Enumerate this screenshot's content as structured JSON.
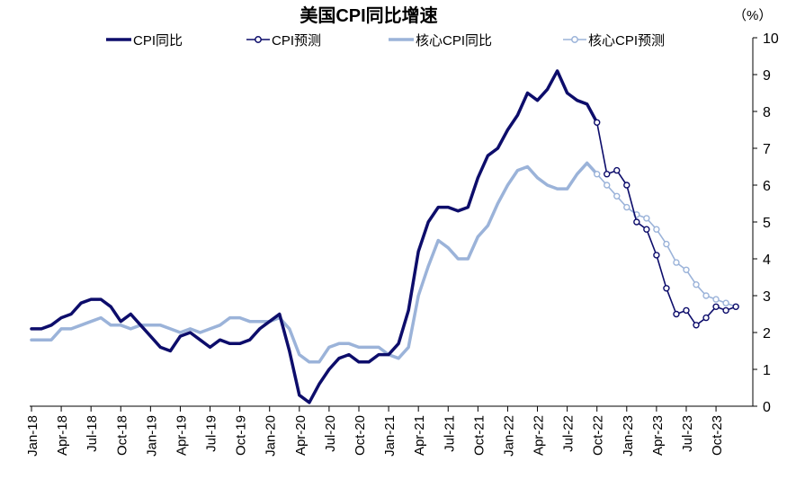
{
  "chart_data": {
    "type": "line",
    "title": "美国CPI同比增速",
    "unit": "（%）",
    "ylim": [
      0,
      10
    ],
    "yticks": [
      0,
      1,
      2,
      3,
      4,
      5,
      6,
      7,
      8,
      9,
      10
    ],
    "x_tick_labels": [
      "Jan-18",
      "Apr-18",
      "Jul-18",
      "Oct-18",
      "Jan-19",
      "Apr-19",
      "Jul-19",
      "Oct-19",
      "Jan-20",
      "Apr-20",
      "Jul-20",
      "Oct-20",
      "Jan-21",
      "Apr-21",
      "Jul-21",
      "Oct-21",
      "Jan-22",
      "Apr-22",
      "Jul-22",
      "Oct-22",
      "Jan-23",
      "Apr-23",
      "Jul-23",
      "Oct-23"
    ],
    "legend_position": "top",
    "series": [
      {
        "name": "CPI同比",
        "color": "#0d0d6b",
        "style": "solid",
        "x_start_index": 0,
        "values": [
          2.1,
          2.1,
          2.2,
          2.4,
          2.5,
          2.8,
          2.9,
          2.9,
          2.7,
          2.3,
          2.5,
          2.2,
          1.9,
          1.6,
          1.5,
          1.9,
          2.0,
          1.8,
          1.6,
          1.8,
          1.7,
          1.7,
          1.8,
          2.1,
          2.3,
          2.5,
          1.5,
          0.3,
          0.1,
          0.6,
          1.0,
          1.3,
          1.4,
          1.2,
          1.2,
          1.4,
          1.4,
          1.7,
          2.6,
          4.2,
          5.0,
          5.4,
          5.4,
          5.3,
          5.4,
          6.2,
          6.8,
          7.0,
          7.5,
          7.9,
          8.5,
          8.3,
          8.6,
          9.1,
          8.5,
          8.3,
          8.2,
          7.7
        ]
      },
      {
        "name": "CPI预测",
        "color": "#0d0d6b",
        "style": "marker",
        "x_start_index": 57,
        "values": [
          7.7,
          6.3,
          6.4,
          6.0,
          5.0,
          4.8,
          4.1,
          3.2,
          2.5,
          2.6,
          2.2,
          2.4,
          2.7,
          2.6,
          2.7
        ]
      },
      {
        "name": "核心CPI同比",
        "color": "#9bb3d9",
        "style": "solid",
        "x_start_index": 0,
        "values": [
          1.8,
          1.8,
          1.8,
          2.1,
          2.1,
          2.2,
          2.3,
          2.4,
          2.2,
          2.2,
          2.1,
          2.2,
          2.2,
          2.2,
          2.1,
          2.0,
          2.1,
          2.0,
          2.1,
          2.2,
          2.4,
          2.4,
          2.3,
          2.3,
          2.3,
          2.4,
          2.1,
          1.4,
          1.2,
          1.2,
          1.6,
          1.7,
          1.7,
          1.6,
          1.6,
          1.6,
          1.4,
          1.3,
          1.6,
          3.0,
          3.8,
          4.5,
          4.3,
          4.0,
          4.0,
          4.6,
          4.9,
          5.5,
          6.0,
          6.4,
          6.5,
          6.2,
          6.0,
          5.9,
          5.9,
          6.3,
          6.6,
          6.3
        ]
      },
      {
        "name": "核心CPI预测",
        "color": "#9bb3d9",
        "style": "marker",
        "x_start_index": 57,
        "values": [
          6.3,
          6.0,
          5.7,
          5.4,
          5.2,
          5.1,
          4.8,
          4.4,
          3.9,
          3.7,
          3.3,
          3.0,
          2.9,
          2.8,
          2.7
        ]
      }
    ]
  }
}
